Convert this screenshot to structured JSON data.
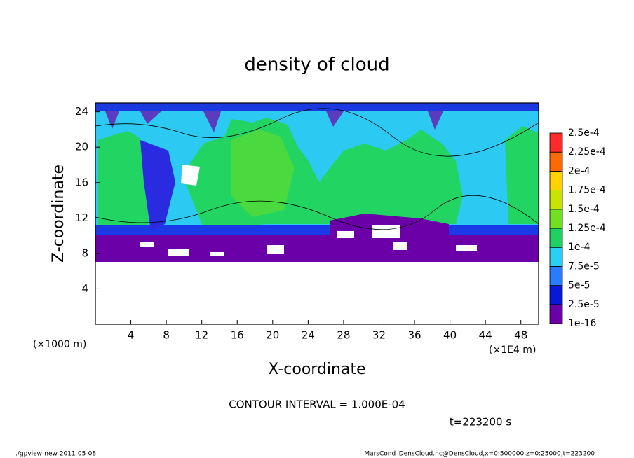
{
  "chart_data": {
    "type": "contour",
    "title": "density of cloud",
    "xlabel": "X-coordinate",
    "ylabel": "Z-coordinate",
    "x_unit_left": "(×1000 m)",
    "x_unit_right": "(×1E4 m)",
    "xlim": [
      0,
      50
    ],
    "xticks": [
      4,
      8,
      12,
      16,
      20,
      24,
      28,
      32,
      36,
      40,
      44,
      48
    ],
    "ylim": [
      0,
      25
    ],
    "yticks": [
      4,
      8,
      12,
      16,
      20,
      24
    ],
    "colorbar": {
      "levels": [
        {
          "value": 1e-16,
          "label": "1e-16"
        },
        {
          "value": 2.5e-05,
          "label": "2.5e-5"
        },
        {
          "value": 5e-05,
          "label": "5e-5"
        },
        {
          "value": 7.5e-05,
          "label": "7.5e-5"
        },
        {
          "value": 0.0001,
          "label": "1e-4"
        },
        {
          "value": 0.000125,
          "label": "1.25e-4"
        },
        {
          "value": 0.00015,
          "label": "1.5e-4"
        },
        {
          "value": 0.000175,
          "label": "1.75e-4"
        },
        {
          "value": 0.0002,
          "label": "2e-4"
        },
        {
          "value": 0.000225,
          "label": "2.25e-4"
        },
        {
          "value": 0.00025,
          "label": "2.5e-4"
        }
      ],
      "colors": [
        "#6c00a8",
        "#0818d8",
        "#2a7cff",
        "#28d0f4",
        "#20d060",
        "#70e020",
        "#c8e400",
        "#ffd200",
        "#ff6a00",
        "#ff2a2a",
        "#ff9a9a"
      ]
    },
    "contour_interval": "CONTOUR INTERVAL = 1.000E-04",
    "time_label": "t=223200 s",
    "footer_left": "./gpview-new  2011-05-08",
    "footer_right": "MarsCond_DensCloud.nc@DensCloud,x=0:500000,z=0:25000,t=223200"
  }
}
